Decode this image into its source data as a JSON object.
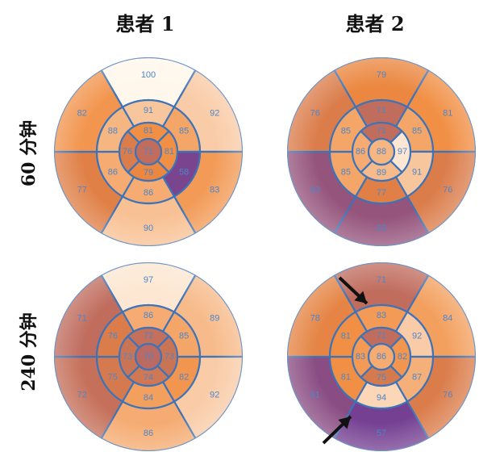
{
  "column_titles": [
    "患者 1",
    "患者 2"
  ],
  "row_titles": [
    "60 分钟",
    "240 分钟"
  ],
  "colors": {
    "segment_line": "#3d73b8",
    "segment_label": "#4d86c9",
    "perfusion_high": "#fff7ec",
    "perfusion_mid": "#f08a3c",
    "perfusion_low": "#6a3a9a",
    "arrow": "#111111"
  },
  "maps": [
    {
      "patient": 1,
      "time": "60 分钟",
      "values": [
        100,
        92,
        83,
        90,
        77,
        82,
        91,
        85,
        58,
        86,
        86,
        88,
        81,
        81,
        79,
        76,
        71
      ]
    },
    {
      "patient": 2,
      "time": "60 分钟",
      "values": [
        79,
        81,
        76,
        63,
        63,
        76,
        71,
        85,
        91,
        77,
        85,
        85,
        71,
        97,
        89,
        86,
        88
      ]
    },
    {
      "patient": 1,
      "time": "240 分钟",
      "values": [
        97,
        89,
        92,
        86,
        72,
        71,
        86,
        85,
        82,
        84,
        75,
        76,
        72,
        73,
        74,
        73,
        70
      ]
    },
    {
      "patient": 2,
      "time": "240 分钟",
      "values": [
        71,
        84,
        76,
        57,
        61,
        78,
        83,
        92,
        87,
        94,
        81,
        81,
        71,
        82,
        75,
        83,
        86
      ],
      "arrows": [
        "arrow-to-basal-anterior",
        "arrow-to-mid-inferior"
      ]
    }
  ]
}
